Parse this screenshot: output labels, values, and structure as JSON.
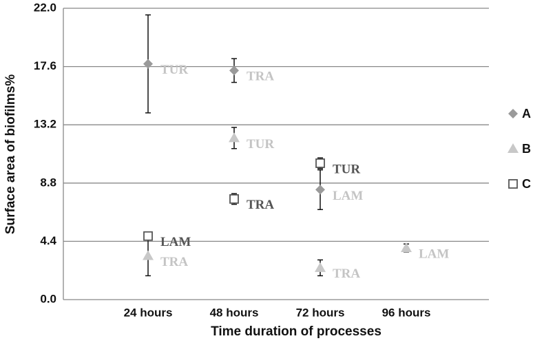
{
  "chart_data": {
    "type": "scatter",
    "y_label": "Surface area of biofilms%",
    "x_label": "Time duration of processes",
    "categories": [
      "24 hours",
      "48 hours",
      "72 hours",
      "96 hours"
    ],
    "ylim": [
      0,
      22
    ],
    "yticks": [
      {
        "value": 0,
        "label": "0.0"
      },
      {
        "value": 4.4,
        "label": "4.4"
      },
      {
        "value": 8.8,
        "label": "8.8"
      },
      {
        "value": 13.2,
        "label": "13.2"
      },
      {
        "value": 17.6,
        "label": "17.6"
      },
      {
        "value": 22,
        "label": "22.0"
      }
    ],
    "grid": true,
    "legend": "right",
    "series": [
      {
        "name": "A",
        "marker": "diamond",
        "color": "#9a9a9a",
        "label_color": "#c4c4c4",
        "values": [
          17.8,
          17.3,
          8.3,
          null
        ],
        "errors": [
          3.7,
          0.9,
          1.5,
          null
        ],
        "point_labels": [
          "TUR",
          "TRA",
          "LAM",
          null
        ]
      },
      {
        "name": "B",
        "marker": "triangle",
        "color": "#c8c8c8",
        "label_color": "#c4c4c4",
        "values": [
          3.3,
          12.2,
          2.4,
          3.9
        ],
        "errors": [
          1.5,
          0.8,
          0.6,
          0.3
        ],
        "point_labels": [
          "TRA",
          "TUR",
          "TRA",
          "LAM"
        ]
      },
      {
        "name": "C",
        "marker": "square",
        "color": "#555555",
        "label_color": "#555555",
        "values": [
          4.8,
          7.6,
          10.3,
          null
        ],
        "errors": [
          0.3,
          0.4,
          0.4,
          null
        ],
        "point_labels": [
          "LAM",
          "TRA",
          "TUR",
          null
        ]
      }
    ]
  }
}
